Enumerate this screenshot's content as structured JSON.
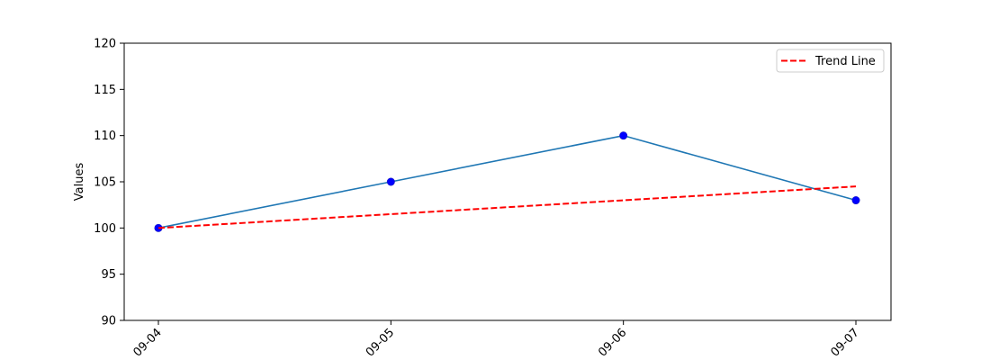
{
  "chart_data": {
    "type": "line",
    "title": "",
    "xlabel": "",
    "ylabel": "Values",
    "categories": [
      "09-04",
      "09-05",
      "09-06",
      "09-07"
    ],
    "series": [
      {
        "values": [
          100,
          105,
          110,
          103
        ],
        "color": "#1f77b4",
        "marker_color": "#0000ff",
        "style": "solid",
        "markers": true
      },
      {
        "name": "Trend Line",
        "values": [
          100,
          101.5,
          103,
          104.5
        ],
        "color": "#ff0000",
        "style": "dashed",
        "markers": false
      }
    ],
    "ylim": [
      90,
      120
    ],
    "yticks": [
      90,
      95,
      100,
      105,
      110,
      115,
      120
    ],
    "grid": false,
    "legend_position": "top-right"
  }
}
